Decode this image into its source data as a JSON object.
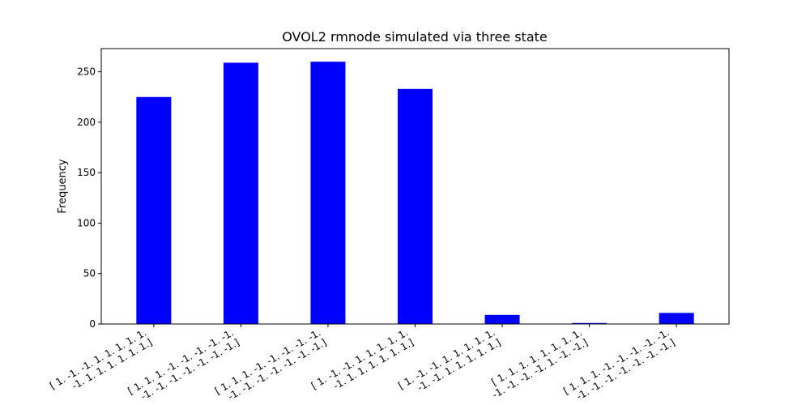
{
  "chart_data": {
    "type": "bar",
    "title": "OVOL2 rmnode simulated via three state",
    "xlabel": "",
    "ylabel": "Frequency",
    "categories": [
      [
        "[ 1. -1. -1. 1. 1. 1. 1. 1.",
        "-1. 1. 1. 1. 1. 1. 1.]"
      ],
      [
        "[ 1. 1. 1. -1. -1. -1. -1. -1.",
        "-1. -1. -1. -1. -1. -1. -1.]"
      ],
      [
        "[ 1. 1. 1. -1. -1. -1. -1. -1.",
        "-1. -1. -1. -1. -1. -1. -1.]"
      ],
      [
        "[ 1. -1. -1. 1. 1. 1. 1. 1.",
        "-1. 1. 1. 1. 1. 1. 1.]"
      ],
      [
        "[ 1. -1. -1. 1. 1. 1. 1. 1.",
        "-1. -1. 1. 1. 1. 1. 1.]"
      ],
      [
        "[ 1. 1. 1. 1. 1. 1. 1. 1.",
        "-1. -1. -1. -1. 1. -1. -1.]"
      ],
      [
        "[ 1. 1. 1. -1. -1. -1. -1. -1.",
        "-1. -1. -1. -1. -1. -1. -1.]"
      ]
    ],
    "values": [
      225,
      259,
      260,
      233,
      9,
      1,
      11
    ],
    "ylim": [
      0,
      273
    ],
    "yticks": [
      0,
      50,
      100,
      150,
      200,
      250
    ],
    "bar_color": "#0000ff",
    "grid": false,
    "legend": "none"
  }
}
